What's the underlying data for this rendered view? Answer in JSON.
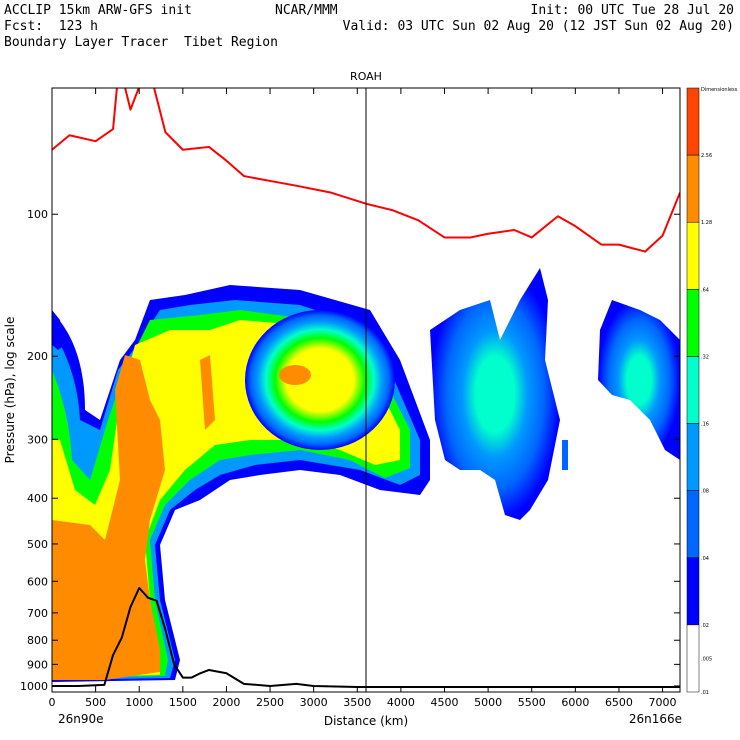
{
  "header": {
    "left": [
      "ACCLIP 15km ARW-GFS init",
      "Fcst:  123 h",
      "Boundary Layer Tracer  Tibet Region"
    ],
    "center": "NCAR/MMM",
    "right": [
      "Init: 00 UTC Tue 28 Jul 20",
      "Valid: 03 UTC Sun 02 Aug 20 (12 JST Sun 02 Aug 20)"
    ]
  },
  "chart_data": {
    "type": "heatmap",
    "title": "ROAH",
    "xlabel": "Distance (km)",
    "ylabel": "Pressure (hPa), log scale",
    "x_ticks": [
      0,
      500,
      1000,
      1500,
      2000,
      2500,
      3000,
      3500,
      4000,
      4500,
      5000,
      5500,
      6000,
      6500,
      7000
    ],
    "xlim": [
      0,
      7200
    ],
    "y_ticks": [
      100,
      200,
      300,
      400,
      500,
      600,
      700,
      800,
      900,
      1000
    ],
    "ylim": [
      1030,
      54
    ],
    "y_scale": "log",
    "endpoint_labels": [
      "26n90e",
      "26n166e"
    ],
    "vertical_marker_x": 3600,
    "colorbar": {
      "title": "Dimensionless",
      "labels": [
        "2.56",
        "1.28",
        ".64",
        ".32",
        ".16",
        ".08",
        ".04",
        ".02",
        ".01",
        ".005"
      ],
      "colors": [
        "#ff4500",
        "#ff8c00",
        "#ffff00",
        "#00ff00",
        "#00ffcc",
        "#0099ff",
        "#0066ff",
        "#0000ff",
        "#ffffff"
      ]
    },
    "tropopause_line": {
      "color": "#ff0000",
      "x": [
        0,
        200,
        500,
        700,
        770,
        900,
        1100,
        1300,
        1500,
        1800,
        2000,
        2200,
        2500,
        2800,
        3200,
        3600,
        3900,
        4200,
        4500,
        4800,
        5000,
        5300,
        5500,
        5800,
        6000,
        6300,
        6500,
        6800,
        7000,
        7200
      ],
      "p": [
        73,
        68,
        70,
        66,
        48,
        60,
        48,
        67,
        73,
        72,
        77,
        83,
        85,
        87,
        90,
        95,
        98,
        103,
        112,
        112,
        110,
        108,
        112,
        101,
        106,
        116,
        116,
        120,
        111,
        90
      ]
    },
    "terrain_line": {
      "color": "#000000",
      "x": [
        0,
        300,
        600,
        700,
        800,
        900,
        1000,
        1100,
        1200,
        1300,
        1400,
        1500,
        1600,
        1700,
        1800,
        2000,
        2200,
        2500,
        2800,
        3000,
        3500,
        4000,
        5000,
        6000,
        7000,
        7200
      ],
      "p": [
        1000,
        1000,
        995,
        860,
        790,
        680,
        620,
        650,
        660,
        760,
        900,
        960,
        960,
        940,
        925,
        940,
        990,
        1000,
        990,
        1000,
        1005,
        1005,
        1005,
        1005,
        1005,
        1005
      ]
    }
  }
}
